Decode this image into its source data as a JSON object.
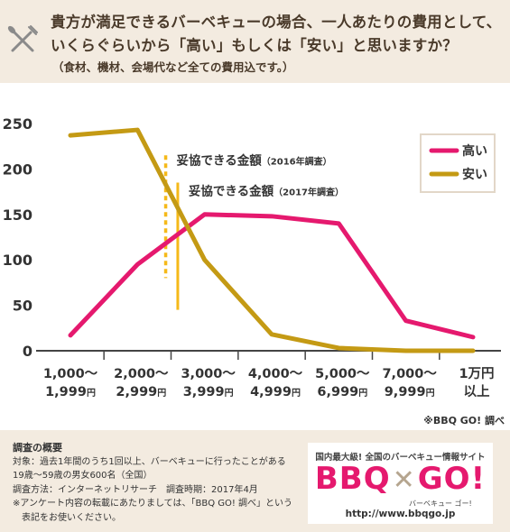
{
  "header": {
    "icon": "bbq-fork-knife-icon",
    "question_line1": "貴方が満足できるバーベキューの場合、一人あたりの費用として、",
    "question_line2": "いくらぐらいから「高い」もしくは「安い」と思いますか？",
    "question_note": "（食材、機材、会場代など全ての費用込です。）"
  },
  "chart_data": {
    "type": "line",
    "categories": [
      {
        "line1": "1,000～",
        "line2": "1,999",
        "unit": "円"
      },
      {
        "line1": "2,000～",
        "line2": "2,999",
        "unit": "円"
      },
      {
        "line1": "3,000～",
        "line2": "3,999",
        "unit": "円"
      },
      {
        "line1": "4,000～",
        "line2": "4,999",
        "unit": "円"
      },
      {
        "line1": "5,000～",
        "line2": "6,999",
        "unit": "円"
      },
      {
        "line1": "7,000～",
        "line2": "9,999",
        "unit": "円"
      },
      {
        "line1": "1万円",
        "line2": "以上",
        "unit": ""
      }
    ],
    "series": [
      {
        "name": "高い",
        "color": "#e5196e",
        "values": [
          17,
          95,
          150,
          148,
          140,
          33,
          15
        ]
      },
      {
        "name": "安い",
        "color": "#c49a14",
        "values": [
          237,
          243,
          100,
          18,
          3,
          0,
          0
        ]
      }
    ],
    "yticks": [
      0,
      50,
      100,
      150,
      200,
      250
    ],
    "ylim": [
      0,
      250
    ],
    "grid": false,
    "legend": "top-right",
    "annotations": [
      {
        "main": "妥協できる金額",
        "sub": "（2016年調査）",
        "style": "dotted",
        "color": "#f5b919"
      },
      {
        "main": "妥協できる金額",
        "sub": "（2017年調査）",
        "style": "solid",
        "color": "#f5b919"
      }
    ]
  },
  "source_note": "※BBQ GO! 調べ",
  "survey": {
    "title": "調査の概要",
    "target": "対象：過去1年間のうち1回以上、バーベキューに行ったことがある",
    "target2": "19歳～59歳の男女600名（全国）",
    "method": "調査方法：インターネットリサーチ　調査時期：2017年4月",
    "note": "※アンケート内容の転載にあたりましては、「BBQ GO! 調べ」という",
    "note2": "表記をお使いください。"
  },
  "logo": {
    "tagline": "国内最大級! 全国のバーベキュー情報サイト",
    "brand_left": "BBQ",
    "brand_right": "GO!",
    "kana": "バーベキュー ゴー!",
    "url": "http://www.bbqgo.jp"
  }
}
